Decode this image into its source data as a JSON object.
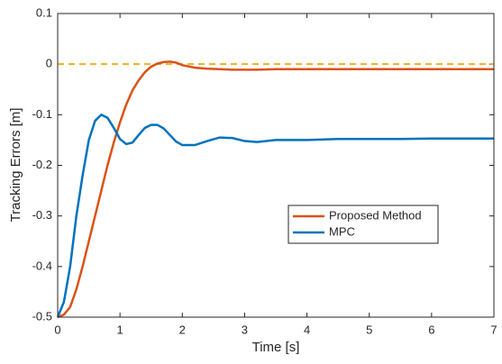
{
  "chart_data": {
    "type": "line",
    "xlabel": "Time [s]",
    "ylabel": "Tracking Errors [m]",
    "x": [
      0,
      0.1,
      0.2,
      0.3,
      0.4,
      0.5,
      0.6,
      0.7,
      0.8,
      0.9,
      1.0,
      1.1,
      1.2,
      1.3,
      1.4,
      1.5,
      1.6,
      1.7,
      1.8,
      1.9,
      2.0,
      2.2,
      2.4,
      2.6,
      2.8,
      3.0,
      3.2,
      3.5,
      4,
      4.5,
      5,
      5.5,
      6,
      6.5,
      7
    ],
    "series": [
      {
        "name": "Proposed Method",
        "color": "#d95319",
        "values": [
          -0.5,
          -0.495,
          -0.48,
          -0.445,
          -0.4,
          -0.35,
          -0.3,
          -0.25,
          -0.2,
          -0.155,
          -0.115,
          -0.08,
          -0.052,
          -0.032,
          -0.016,
          -0.005,
          0.001,
          0.004,
          0.005,
          0.003,
          -0.002,
          -0.007,
          -0.009,
          -0.01,
          -0.011,
          -0.011,
          -0.011,
          -0.01,
          -0.01,
          -0.01,
          -0.01,
          -0.01,
          -0.01,
          -0.01,
          -0.01
        ]
      },
      {
        "name": "MPC",
        "color": "#0072bd",
        "values": [
          -0.5,
          -0.47,
          -0.4,
          -0.3,
          -0.22,
          -0.15,
          -0.112,
          -0.1,
          -0.106,
          -0.126,
          -0.148,
          -0.158,
          -0.155,
          -0.14,
          -0.126,
          -0.12,
          -0.12,
          -0.127,
          -0.14,
          -0.153,
          -0.16,
          -0.16,
          -0.152,
          -0.145,
          -0.146,
          -0.152,
          -0.154,
          -0.15,
          -0.15,
          -0.148,
          -0.148,
          -0.148,
          -0.147,
          -0.147,
          -0.147
        ]
      }
    ],
    "reference_line": {
      "value": 0,
      "color": "#edb120",
      "dashed": true
    },
    "xlim": [
      0,
      7
    ],
    "xticks": [
      0,
      1,
      2,
      3,
      4,
      5,
      6,
      7
    ],
    "ylim": [
      -0.5,
      0.1
    ],
    "yticks": [
      -0.5,
      -0.4,
      -0.3,
      -0.2,
      -0.1,
      0,
      0.1
    ],
    "grid": false,
    "legend_position": "center-right"
  }
}
